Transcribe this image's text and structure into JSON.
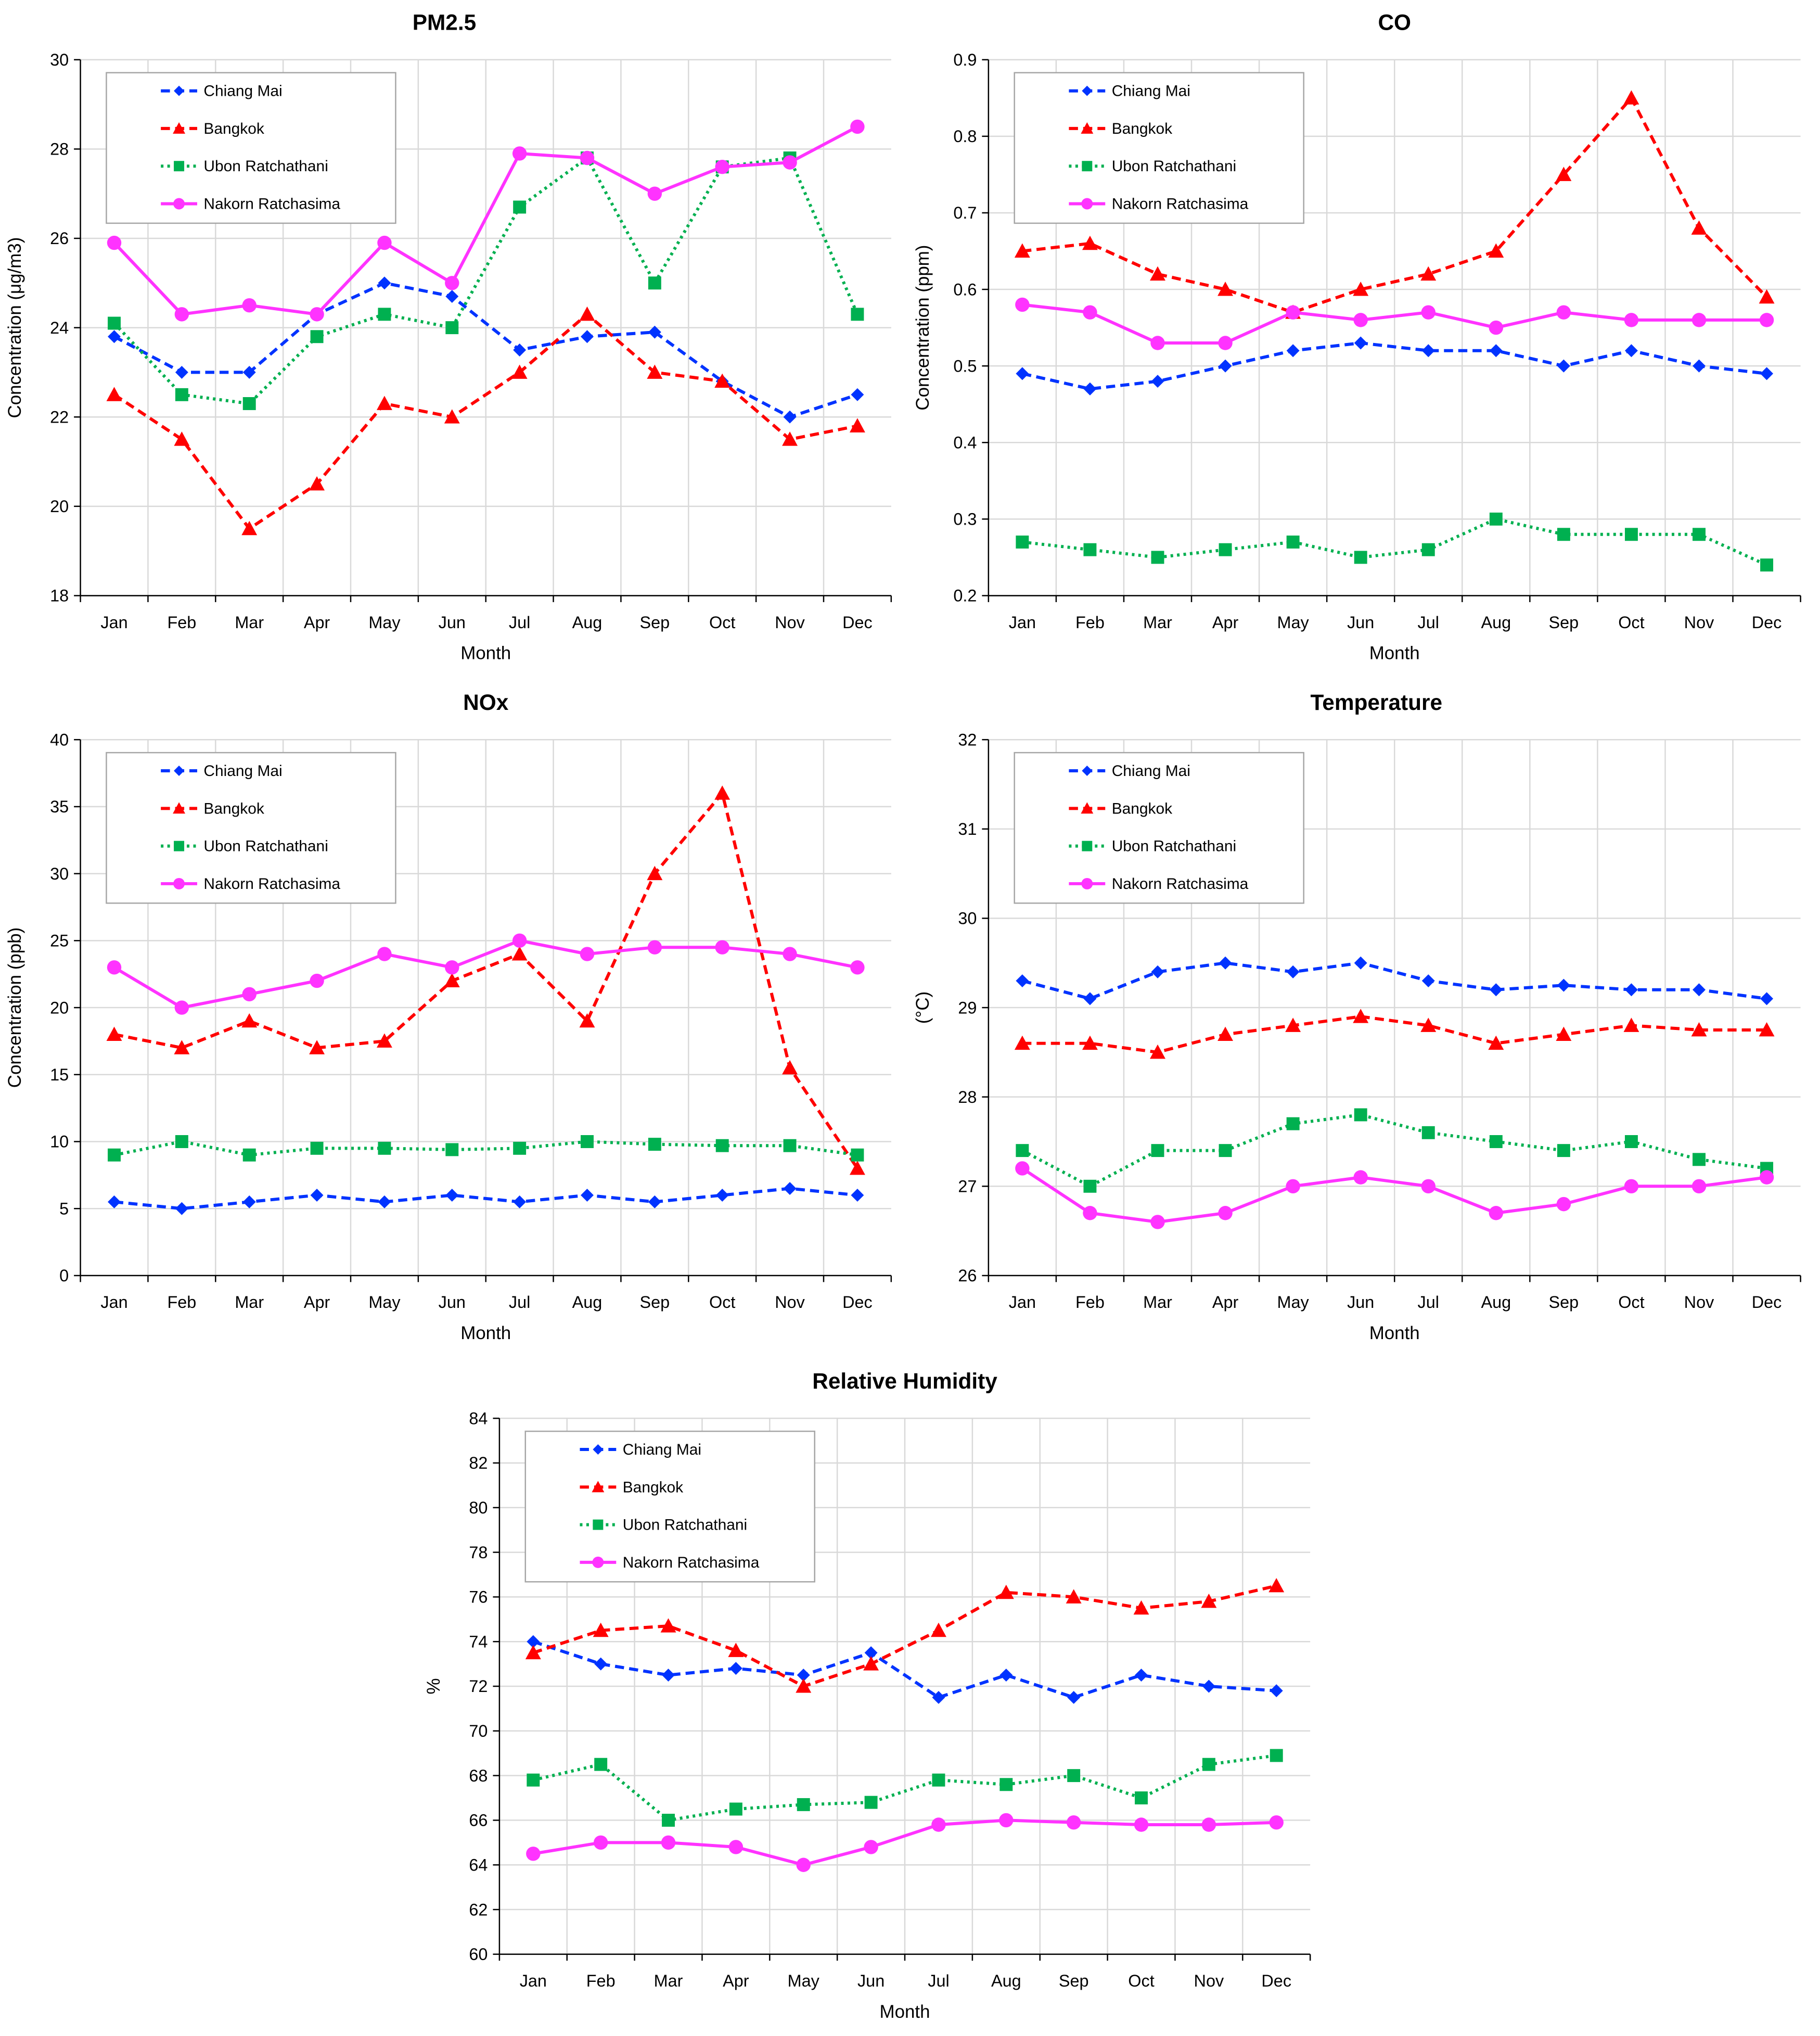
{
  "colors": {
    "Chiang Mai": "#0033ff",
    "Bangkok": "#ff0000",
    "Ubon Ratchathani": "#00b050",
    "Nakorn Ratchasima": "#ff33ff"
  },
  "chart_data": [
    {
      "type": "line",
      "title": "PM2.5",
      "xlabel": "Month",
      "ylabel": "Concentration (μg/m3)",
      "ylim": [
        18,
        30
      ],
      "ystep": 2,
      "legend": "top-left",
      "grid": true,
      "categories": [
        "Jan",
        "Feb",
        "Mar",
        "Apr",
        "May",
        "Jun",
        "Jul",
        "Aug",
        "Sep",
        "Oct",
        "Nov",
        "Dec"
      ],
      "series": [
        {
          "name": "Chiang Mai",
          "marker": "diamond",
          "dash": "dashed",
          "values": [
            23.8,
            23.0,
            23.0,
            24.3,
            25.0,
            24.7,
            23.5,
            23.8,
            23.9,
            22.8,
            22.0,
            22.5
          ]
        },
        {
          "name": "Bangkok",
          "marker": "triangle",
          "dash": "dashed",
          "values": [
            22.5,
            21.5,
            19.5,
            20.5,
            22.3,
            22.0,
            23.0,
            24.3,
            23.0,
            22.8,
            21.5,
            21.8
          ]
        },
        {
          "name": "Ubon Ratchathani",
          "marker": "square",
          "dash": "dotted",
          "values": [
            24.1,
            22.5,
            22.3,
            23.8,
            24.3,
            24.0,
            26.7,
            27.8,
            25.0,
            27.6,
            27.8,
            24.3
          ]
        },
        {
          "name": "Nakorn Ratchasima",
          "marker": "circle",
          "dash": "solid",
          "values": [
            25.9,
            24.3,
            24.5,
            24.3,
            25.9,
            25.0,
            27.9,
            27.8,
            27.0,
            27.6,
            27.7,
            28.5
          ]
        }
      ]
    },
    {
      "type": "line",
      "title": "CO",
      "xlabel": "Month",
      "ylabel": "Concentration (ppm)",
      "ylim": [
        0.2,
        0.9
      ],
      "ystep": 0.1,
      "legend": "top-left",
      "grid": true,
      "categories": [
        "Jan",
        "Feb",
        "Mar",
        "Apr",
        "May",
        "Jun",
        "Jul",
        "Aug",
        "Sep",
        "Oct",
        "Nov",
        "Dec"
      ],
      "series": [
        {
          "name": "Chiang Mai",
          "marker": "diamond",
          "dash": "dashed",
          "values": [
            0.49,
            0.47,
            0.48,
            0.5,
            0.52,
            0.53,
            0.52,
            0.52,
            0.5,
            0.52,
            0.5,
            0.49
          ]
        },
        {
          "name": "Bangkok",
          "marker": "triangle",
          "dash": "dashed",
          "values": [
            0.65,
            0.66,
            0.62,
            0.6,
            0.57,
            0.6,
            0.62,
            0.65,
            0.75,
            0.85,
            0.68,
            0.59
          ]
        },
        {
          "name": "Ubon Ratchathani",
          "marker": "square",
          "dash": "dotted",
          "values": [
            0.27,
            0.26,
            0.25,
            0.26,
            0.27,
            0.25,
            0.26,
            0.3,
            0.28,
            0.28,
            0.28,
            0.24
          ]
        },
        {
          "name": "Nakorn Ratchasima",
          "marker": "circle",
          "dash": "solid",
          "values": [
            0.58,
            0.57,
            0.53,
            0.53,
            0.57,
            0.56,
            0.57,
            0.55,
            0.57,
            0.56,
            0.56,
            0.56
          ]
        }
      ]
    },
    {
      "type": "line",
      "title": "NOx",
      "xlabel": "Month",
      "ylabel": "Concentration (ppb)",
      "ylim": [
        0,
        40
      ],
      "ystep": 5,
      "legend": "top-left",
      "grid": true,
      "categories": [
        "Jan",
        "Feb",
        "Mar",
        "Apr",
        "May",
        "Jun",
        "Jul",
        "Aug",
        "Sep",
        "Oct",
        "Nov",
        "Dec"
      ],
      "series": [
        {
          "name": "Chiang Mai",
          "marker": "diamond",
          "dash": "dashed",
          "values": [
            5.5,
            5.0,
            5.5,
            6.0,
            5.5,
            6.0,
            5.5,
            6.0,
            5.5,
            6.0,
            6.5,
            6.0
          ]
        },
        {
          "name": "Bangkok",
          "marker": "triangle",
          "dash": "dashed",
          "values": [
            18,
            17,
            19,
            17,
            17.5,
            22,
            24,
            19,
            30,
            36,
            15.5,
            8
          ]
        },
        {
          "name": "Ubon Ratchathani",
          "marker": "square",
          "dash": "dotted",
          "values": [
            9.0,
            10.0,
            9.0,
            9.5,
            9.5,
            9.4,
            9.5,
            10.0,
            9.8,
            9.7,
            9.7,
            9.0
          ]
        },
        {
          "name": "Nakorn Ratchasima",
          "marker": "circle",
          "dash": "solid",
          "values": [
            23,
            20,
            21,
            22,
            24,
            23,
            25,
            24,
            24.5,
            24.5,
            24,
            23
          ]
        }
      ]
    },
    {
      "type": "line",
      "title": "Temperature",
      "xlabel": "Month",
      "ylabel": "(°C)",
      "ylim": [
        26,
        32
      ],
      "ystep": 1,
      "legend": "top-left",
      "grid": true,
      "categories": [
        "Jan",
        "Feb",
        "Mar",
        "Apr",
        "May",
        "Jun",
        "Jul",
        "Aug",
        "Sep",
        "Oct",
        "Nov",
        "Dec"
      ],
      "series": [
        {
          "name": "Chiang Mai",
          "marker": "diamond",
          "dash": "dashed",
          "values": [
            29.3,
            29.1,
            29.4,
            29.5,
            29.4,
            29.5,
            29.3,
            29.2,
            29.25,
            29.2,
            29.2,
            29.1
          ]
        },
        {
          "name": "Bangkok",
          "marker": "triangle",
          "dash": "dashed",
          "values": [
            28.6,
            28.6,
            28.5,
            28.7,
            28.8,
            28.9,
            28.8,
            28.6,
            28.7,
            28.8,
            28.75,
            28.75
          ]
        },
        {
          "name": "Ubon Ratchathani",
          "marker": "square",
          "dash": "dotted",
          "values": [
            27.4,
            27.0,
            27.4,
            27.4,
            27.7,
            27.8,
            27.6,
            27.5,
            27.4,
            27.5,
            27.3,
            27.2
          ]
        },
        {
          "name": "Nakorn Ratchasima",
          "marker": "circle",
          "dash": "solid",
          "values": [
            27.2,
            26.7,
            26.6,
            26.7,
            27.0,
            27.1,
            27.0,
            26.7,
            26.8,
            27.0,
            27.0,
            27.1
          ]
        }
      ]
    },
    {
      "type": "line",
      "title": "Relative Humidity",
      "xlabel": "Month",
      "ylabel": "%",
      "ylim": [
        60,
        84
      ],
      "ystep": 2,
      "legend": "top-left",
      "grid": true,
      "categories": [
        "Jan",
        "Feb",
        "Mar",
        "Apr",
        "May",
        "Jun",
        "Jul",
        "Aug",
        "Sep",
        "Oct",
        "Nov",
        "Dec"
      ],
      "series": [
        {
          "name": "Chiang Mai",
          "marker": "diamond",
          "dash": "dashed",
          "values": [
            74.0,
            73.0,
            72.5,
            72.8,
            72.5,
            73.5,
            71.5,
            72.5,
            71.5,
            72.5,
            72.0,
            71.8
          ]
        },
        {
          "name": "Bangkok",
          "marker": "triangle",
          "dash": "dashed",
          "values": [
            73.5,
            74.5,
            74.7,
            73.6,
            72.0,
            73.0,
            74.5,
            76.2,
            76.0,
            75.5,
            75.8,
            76.5
          ]
        },
        {
          "name": "Ubon Ratchathani",
          "marker": "square",
          "dash": "dotted",
          "values": [
            67.8,
            68.5,
            66.0,
            66.5,
            66.7,
            66.8,
            67.8,
            67.6,
            68.0,
            67.0,
            68.5,
            68.9
          ]
        },
        {
          "name": "Nakorn Ratchasima",
          "marker": "circle",
          "dash": "solid",
          "values": [
            64.5,
            65.0,
            65.0,
            64.8,
            64.0,
            64.8,
            65.8,
            66.0,
            65.9,
            65.8,
            65.8,
            65.9
          ]
        }
      ]
    }
  ]
}
